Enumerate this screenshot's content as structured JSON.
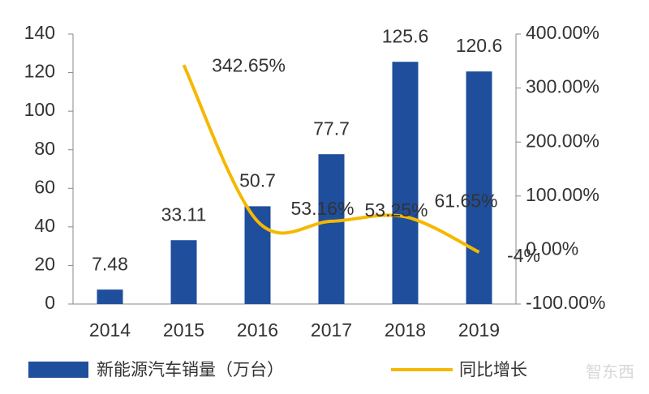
{
  "chart_data": {
    "type": "bar",
    "categories": [
      "2014",
      "2015",
      "2016",
      "2017",
      "2018",
      "2019"
    ],
    "series": [
      {
        "name": "新能源汽车销量（万台）",
        "type": "bar",
        "color": "#1f4e9c",
        "values": [
          7.48,
          33.11,
          50.7,
          77.7,
          125.6,
          120.6
        ]
      },
      {
        "name": "同比增长",
        "type": "line",
        "axis": "y2",
        "color": "#f5b800",
        "values": [
          null,
          342.65,
          53.16,
          53.25,
          61.65,
          -4
        ],
        "value_labels": [
          null,
          "342.65%",
          "53.16%",
          "53.25%",
          "61.65%",
          "-4%"
        ]
      }
    ],
    "ylim": [
      0,
      140
    ],
    "yticks": [
      0,
      20,
      40,
      60,
      80,
      100,
      120,
      140
    ],
    "y2lim": [
      -100,
      400
    ],
    "y2ticks": [
      {
        "value": -100,
        "label": "-100.00%"
      },
      {
        "value": 0,
        "label": "0.00%"
      },
      {
        "value": 100,
        "label": "100.00%"
      },
      {
        "value": 200,
        "label": "200.00%"
      },
      {
        "value": 300,
        "label": "300.00%"
      },
      {
        "value": 400,
        "label": "400.00%"
      }
    ],
    "watermark": "智东西"
  }
}
